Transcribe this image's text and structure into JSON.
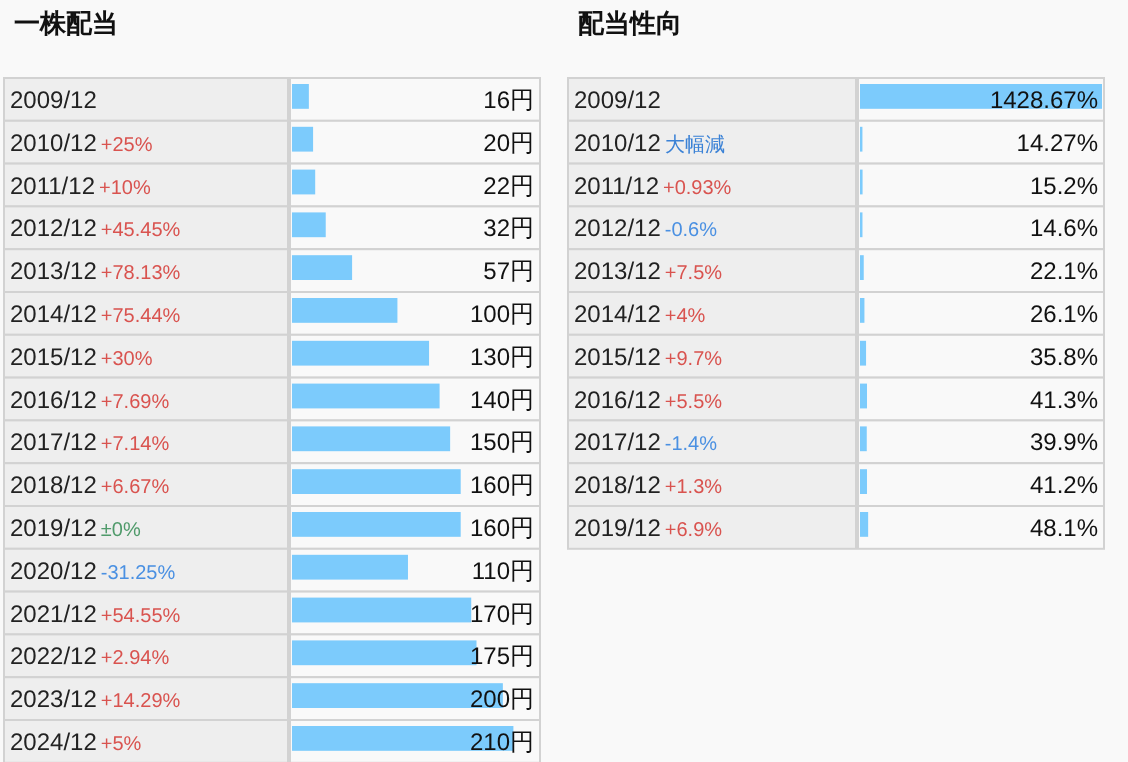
{
  "chart_data": [
    {
      "type": "bar",
      "orientation": "horizontal",
      "title": "一株配当",
      "color": "#7ccbfc",
      "categories": [
        "2009/12",
        "2010/12 +25%",
        "2011/12 +10%",
        "2012/12 +45.45%",
        "2013/12 +78.13%",
        "2014/12 +75.44%",
        "2015/12 +30%",
        "2016/12 +7.69%",
        "2017/12 +7.14%",
        "2018/12 +6.67%",
        "2019/12 ±0%",
        "2020/12 -31.25%",
        "2021/12 +54.55%",
        "2022/12 +2.94%",
        "2023/12 +14.29%",
        "2024/12 +5%"
      ],
      "values": [
        16,
        20,
        22,
        32,
        57,
        100,
        130,
        140,
        150,
        160,
        160,
        110,
        170,
        175,
        200,
        210
      ],
      "value_labels": [
        "16円",
        "20円",
        "22円",
        "32円",
        "57円",
        "100円",
        "130円",
        "140円",
        "150円",
        "160円",
        "160円",
        "110円",
        "170円",
        "175円",
        "200円",
        "210円"
      ]
    },
    {
      "type": "bar",
      "orientation": "horizontal",
      "title": "配当性向",
      "color": "#7ccbfc",
      "categories": [
        "2009/12",
        "2010/12 大幅減",
        "2011/12 +0.93%",
        "2012/12 -0.6%",
        "2013/12 +7.5%",
        "2014/12 +4%",
        "2015/12 +9.7%",
        "2016/12 +5.5%",
        "2017/12 -1.4%",
        "2018/12 +1.3%",
        "2019/12 +6.9%"
      ],
      "values": [
        1428.67,
        14.27,
        15.2,
        14.6,
        22.1,
        26.1,
        35.8,
        41.3,
        39.9,
        41.2,
        48.1
      ],
      "value_labels": [
        "1428.67%",
        "14.27%",
        "15.2%",
        "14.6%",
        "22.1%",
        "26.1%",
        "35.8%",
        "41.3%",
        "39.9%",
        "41.2%",
        "48.1%"
      ]
    }
  ]
}
